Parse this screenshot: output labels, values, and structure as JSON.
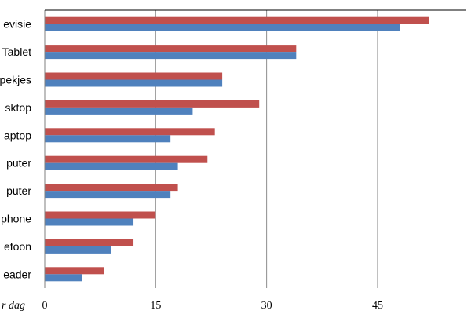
{
  "chart_data": {
    "type": "bar",
    "orientation": "horizontal",
    "categories": [
      "evisie",
      "Tablet",
      "pekjes",
      "sktop",
      "aptop",
      "puter",
      "puter",
      "phone",
      "efoon",
      "eader"
    ],
    "series": [
      {
        "color": "#c0504d",
        "values": [
          52,
          34,
          24,
          29,
          23,
          22,
          18,
          15,
          12,
          8
        ]
      },
      {
        "color": "#4f81bd",
        "values": [
          48,
          34,
          24,
          20,
          17,
          18,
          17,
          12,
          9,
          5
        ]
      }
    ],
    "xticks": [
      "0",
      "15",
      "30",
      "45"
    ],
    "xlim": [
      0,
      57
    ],
    "xlabel": "r dag",
    "grid": true
  }
}
